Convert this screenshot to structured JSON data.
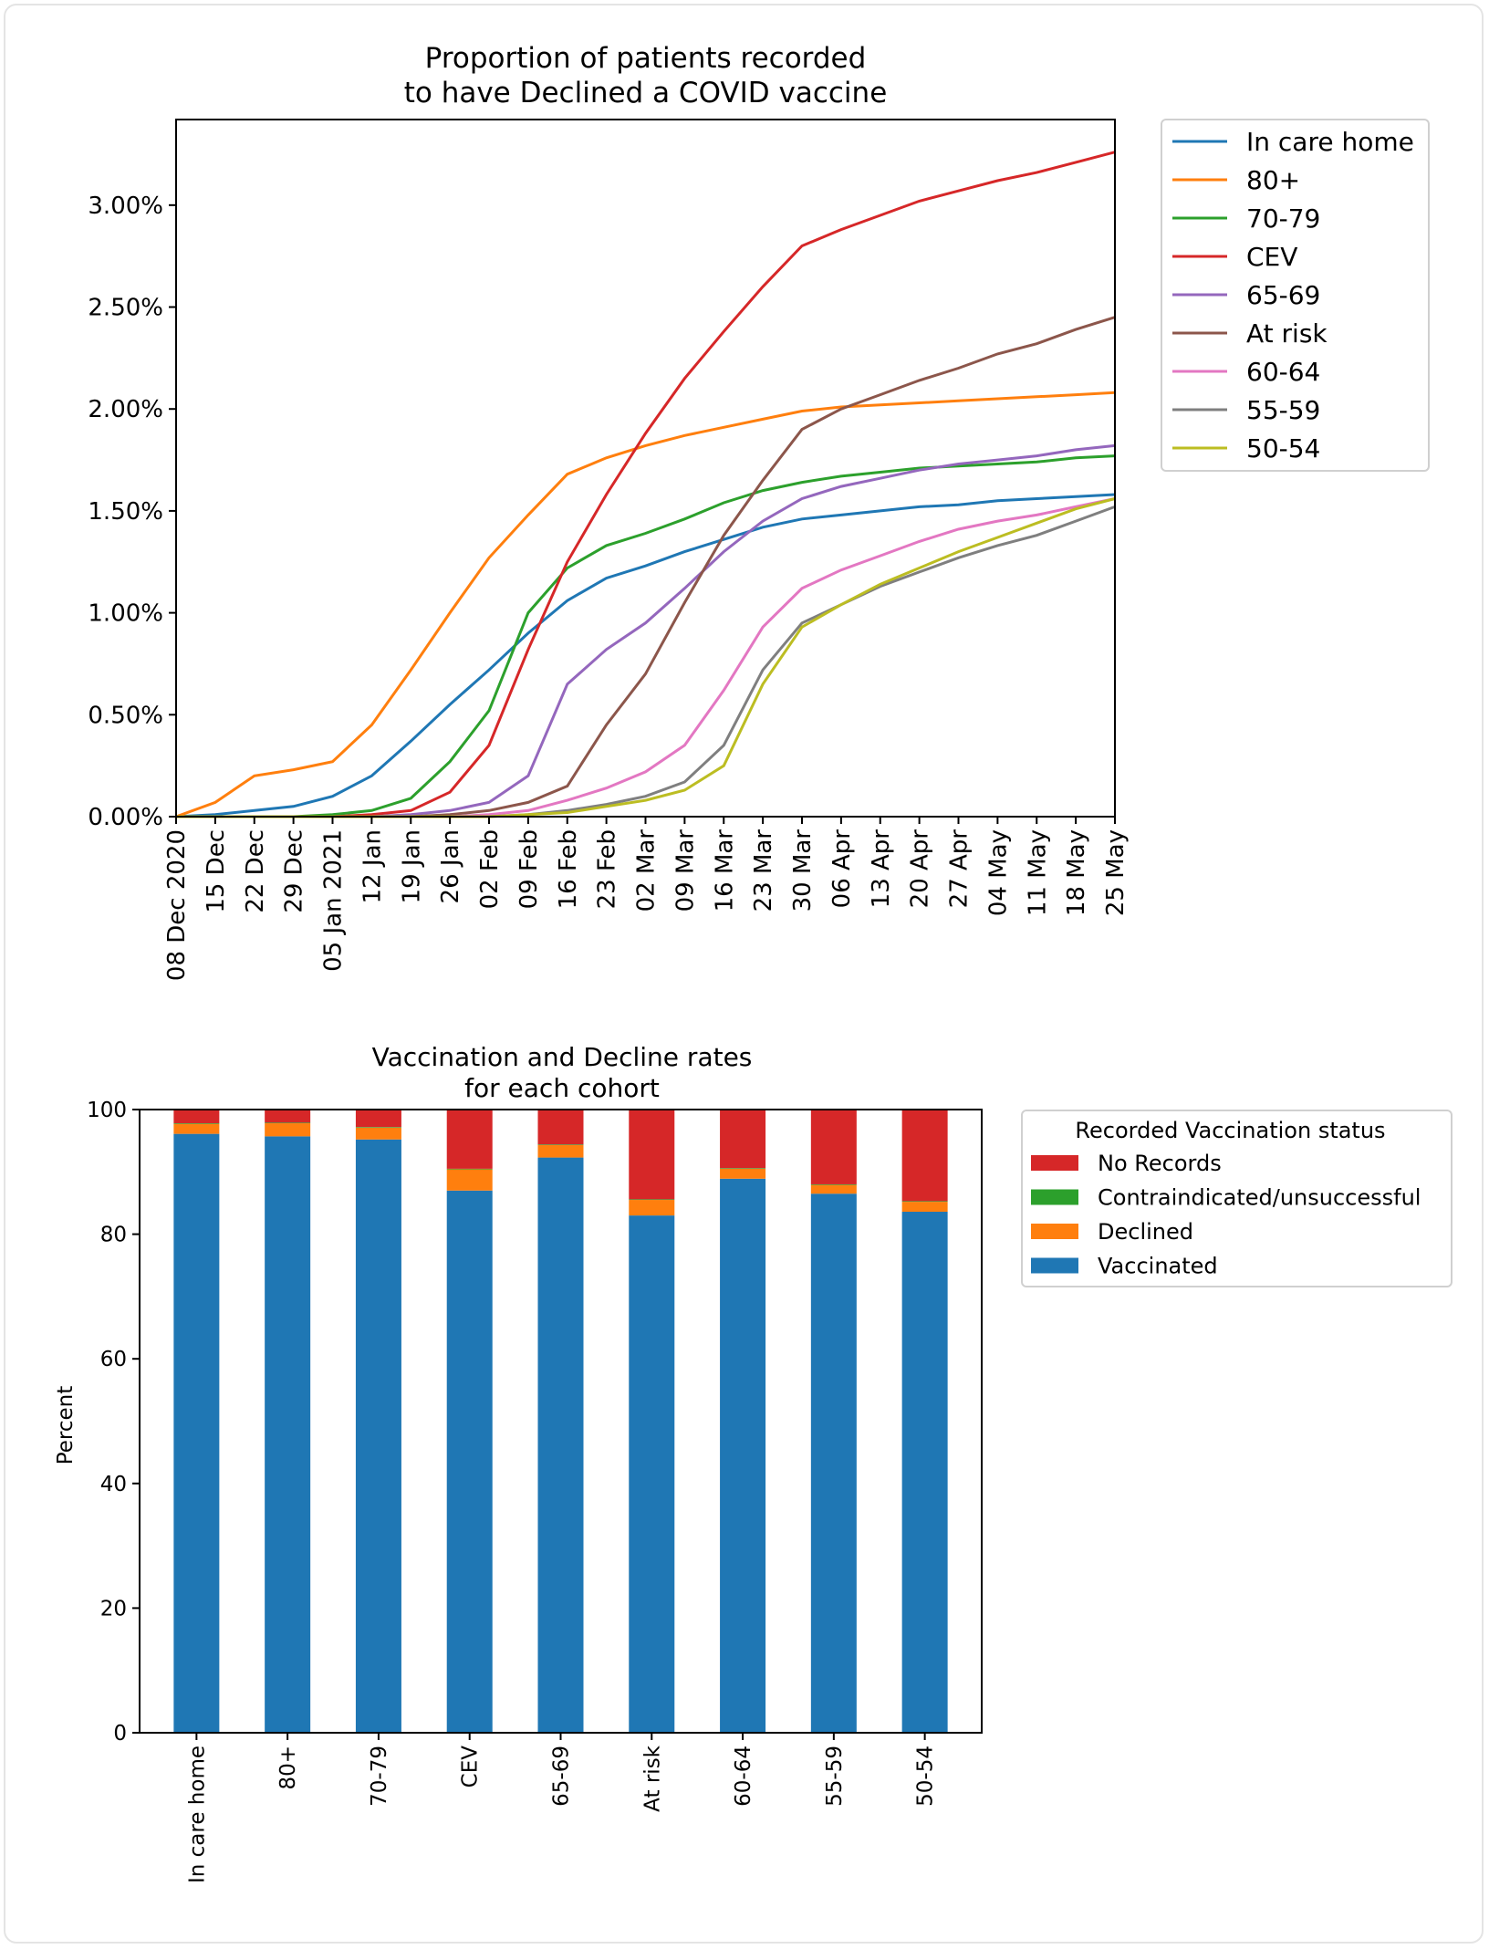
{
  "chart_data": [
    {
      "type": "line",
      "title": "Proportion of patients recorded\nto have Declined a COVID vaccine",
      "xlabel": "",
      "ylabel": "",
      "x_tick_labels": [
        "08 Dec 2020",
        "15 Dec",
        "22 Dec",
        "29 Dec",
        "05 Jan 2021",
        "12 Jan",
        "19 Jan",
        "26 Jan",
        "02 Feb",
        "09 Feb",
        "16 Feb",
        "23 Feb",
        "02 Mar",
        "09 Mar",
        "16 Mar",
        "23 Mar",
        "30 Mar",
        "06 Apr",
        "13 Apr",
        "20 Apr",
        "27 Apr",
        "04 May",
        "11 May",
        "18 May",
        "25 May"
      ],
      "x": [
        "2020-12-08",
        "2020-12-15",
        "2020-12-22",
        "2020-12-29",
        "2021-01-05",
        "2021-01-12",
        "2021-01-19",
        "2021-01-26",
        "2021-02-02",
        "2021-02-09",
        "2021-02-16",
        "2021-02-23",
        "2021-03-02",
        "2021-03-09",
        "2021-03-16",
        "2021-03-23",
        "2021-03-30",
        "2021-04-06",
        "2021-04-13",
        "2021-04-20",
        "2021-04-27",
        "2021-05-04",
        "2021-05-11",
        "2021-05-18",
        "2021-05-25"
      ],
      "y_tick_labels": [
        "0.00%",
        "0.50%",
        "1.00%",
        "1.50%",
        "2.00%",
        "2.50%",
        "3.00%"
      ],
      "y_ticks": [
        0,
        0.5,
        1.0,
        1.5,
        2.0,
        2.5,
        3.0
      ],
      "ylim": [
        0,
        3.42
      ],
      "y_unit": "%",
      "grid": false,
      "legend_placement": "outside-right",
      "series": [
        {
          "name": "In care home",
          "color": "#1f77b4",
          "values": [
            0,
            0.01,
            0.03,
            0.05,
            0.1,
            0.2,
            0.37,
            0.55,
            0.72,
            0.9,
            1.06,
            1.17,
            1.23,
            1.3,
            1.36,
            1.42,
            1.46,
            1.48,
            1.5,
            1.52,
            1.53,
            1.55,
            1.56,
            1.57,
            1.58
          ]
        },
        {
          "name": "80+",
          "color": "#ff7f0e",
          "values": [
            0,
            0.07,
            0.2,
            0.23,
            0.27,
            0.45,
            0.72,
            1.0,
            1.27,
            1.48,
            1.68,
            1.76,
            1.82,
            1.87,
            1.91,
            1.95,
            1.99,
            2.01,
            2.02,
            2.03,
            2.04,
            2.05,
            2.06,
            2.07,
            2.08
          ]
        },
        {
          "name": "70-79",
          "color": "#2ca02c",
          "values": [
            0,
            0,
            0,
            0,
            0.01,
            0.03,
            0.09,
            0.27,
            0.52,
            1.0,
            1.22,
            1.33,
            1.39,
            1.46,
            1.54,
            1.6,
            1.64,
            1.67,
            1.69,
            1.71,
            1.72,
            1.73,
            1.74,
            1.76,
            1.77
          ]
        },
        {
          "name": "CEV",
          "color": "#d62728",
          "values": [
            0,
            0,
            0,
            0,
            0,
            0.01,
            0.03,
            0.12,
            0.35,
            0.82,
            1.25,
            1.58,
            1.88,
            2.15,
            2.38,
            2.6,
            2.8,
            2.88,
            2.95,
            3.02,
            3.07,
            3.12,
            3.16,
            3.21,
            3.26
          ]
        },
        {
          "name": "65-69",
          "color": "#9467bd",
          "values": [
            0,
            0,
            0,
            0,
            0,
            0,
            0.01,
            0.03,
            0.07,
            0.2,
            0.65,
            0.82,
            0.95,
            1.12,
            1.3,
            1.45,
            1.56,
            1.62,
            1.66,
            1.7,
            1.73,
            1.75,
            1.77,
            1.8,
            1.82
          ]
        },
        {
          "name": "At risk",
          "color": "#8c564b",
          "values": [
            0,
            0,
            0,
            0,
            0,
            0,
            0,
            0.01,
            0.03,
            0.07,
            0.15,
            0.45,
            0.7,
            1.05,
            1.38,
            1.65,
            1.9,
            2.0,
            2.07,
            2.14,
            2.2,
            2.27,
            2.32,
            2.39,
            2.45
          ]
        },
        {
          "name": "60-64",
          "color": "#e377c2",
          "values": [
            0,
            0,
            0,
            0,
            0,
            0,
            0,
            0,
            0.01,
            0.03,
            0.08,
            0.14,
            0.22,
            0.35,
            0.62,
            0.93,
            1.12,
            1.21,
            1.28,
            1.35,
            1.41,
            1.45,
            1.48,
            1.52,
            1.56
          ]
        },
        {
          "name": "55-59",
          "color": "#7f7f7f",
          "values": [
            0,
            0,
            0,
            0,
            0,
            0,
            0,
            0,
            0,
            0.01,
            0.03,
            0.06,
            0.1,
            0.17,
            0.35,
            0.72,
            0.95,
            1.04,
            1.13,
            1.2,
            1.27,
            1.33,
            1.38,
            1.45,
            1.52
          ]
        },
        {
          "name": "50-54",
          "color": "#bcbd22",
          "values": [
            0,
            0,
            0,
            0,
            0,
            0,
            0,
            0,
            0,
            0.01,
            0.02,
            0.05,
            0.08,
            0.13,
            0.25,
            0.65,
            0.93,
            1.04,
            1.14,
            1.22,
            1.3,
            1.37,
            1.44,
            1.51,
            1.56
          ]
        }
      ]
    },
    {
      "type": "bar",
      "stacked": true,
      "title": "Vaccination and Decline rates\nfor each cohort",
      "xlabel": "",
      "ylabel": "Percent",
      "ylim": [
        0,
        100
      ],
      "y_ticks": [
        0,
        20,
        40,
        60,
        80,
        100
      ],
      "grid": false,
      "legend_title": "Recorded Vaccination status",
      "legend_placement": "outside-right",
      "categories": [
        "In care home",
        "80+",
        "70-79",
        "CEV",
        "65-69",
        "At risk",
        "60-64",
        "55-59",
        "50-54"
      ],
      "legend_order": [
        "No Records",
        "Contraindicated/unsuccessful",
        "Declined",
        "Vaccinated"
      ],
      "series": [
        {
          "name": "Vaccinated",
          "color": "#1f77b4",
          "values": [
            96.1,
            95.7,
            95.2,
            87.0,
            92.3,
            83.0,
            88.9,
            86.5,
            83.6
          ]
        },
        {
          "name": "Declined",
          "color": "#ff7f0e",
          "values": [
            1.6,
            2.1,
            1.9,
            3.4,
            2.0,
            2.5,
            1.6,
            1.4,
            1.6
          ]
        },
        {
          "name": "Contraindicated/unsuccessful",
          "color": "#2ca02c",
          "values": [
            0.1,
            0.1,
            0.1,
            0.1,
            0.1,
            0.1,
            0.1,
            0.1,
            0.1
          ]
        },
        {
          "name": "No Records",
          "color": "#d62728",
          "values": [
            2.2,
            2.1,
            2.8,
            9.5,
            5.6,
            14.4,
            9.4,
            12.0,
            14.7
          ]
        }
      ]
    }
  ]
}
